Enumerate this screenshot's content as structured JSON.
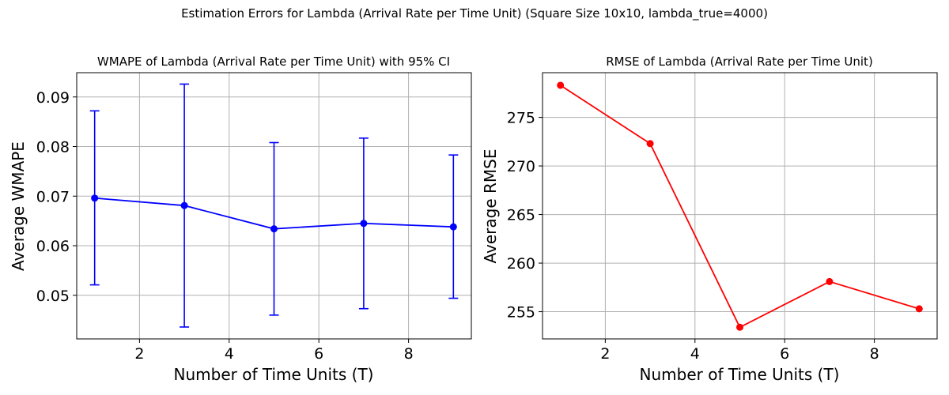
{
  "figure": {
    "suptitle": "Estimation Errors for Lambda (Arrival Rate per Time Unit) (Square Size 10x10, lambda_true=4000)"
  },
  "chart_data": [
    {
      "type": "line",
      "error_bars": true,
      "title": "WMAPE of Lambda (Arrival Rate per Time Unit) with 95% CI",
      "xlabel": "Number of Time Units (T)",
      "ylabel": "Average WMAPE",
      "x": [
        1,
        3,
        5,
        7,
        9
      ],
      "series": [
        {
          "values": [
            0.0696,
            0.0681,
            0.0634,
            0.0645,
            0.0638
          ],
          "ci_lower": [
            0.0521,
            0.0436,
            0.046,
            0.0473,
            0.0494
          ],
          "ci_upper": [
            0.0872,
            0.0926,
            0.0808,
            0.0817,
            0.0783
          ],
          "color": "#0000ff"
        }
      ],
      "xlim": [
        0.6,
        9.4
      ],
      "ylim": [
        0.0412,
        0.0949
      ],
      "xticks": [
        2,
        4,
        6,
        8
      ],
      "xtick_labels": [
        "2",
        "4",
        "6",
        "8"
      ],
      "yticks": [
        0.05,
        0.06,
        0.07,
        0.08,
        0.09
      ],
      "ytick_labels": [
        "0.05",
        "0.06",
        "0.07",
        "0.08",
        "0.09"
      ],
      "grid": true
    },
    {
      "type": "line",
      "title": "RMSE of Lambda (Arrival Rate per Time Unit)",
      "xlabel": "Number of Time Units (T)",
      "ylabel": "Average RMSE",
      "x": [
        1,
        3,
        5,
        7,
        9
      ],
      "series": [
        {
          "values": [
            278.3,
            272.3,
            253.4,
            258.1,
            255.3
          ],
          "color": "#ff0000"
        }
      ],
      "xlim": [
        0.6,
        9.4
      ],
      "ylim": [
        252.2,
        279.6
      ],
      "xticks": [
        2,
        4,
        6,
        8
      ],
      "xtick_labels": [
        "2",
        "4",
        "6",
        "8"
      ],
      "yticks": [
        255,
        260,
        265,
        270,
        275
      ],
      "ytick_labels": [
        "255",
        "260",
        "265",
        "270",
        "275"
      ],
      "grid": true
    }
  ]
}
